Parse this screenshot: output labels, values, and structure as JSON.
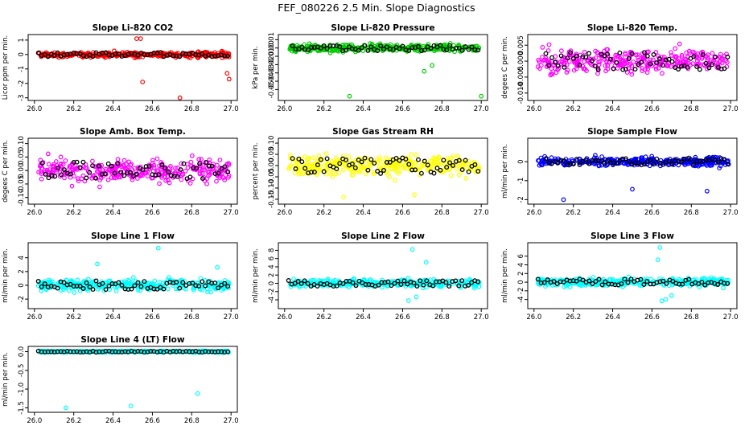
{
  "page": {
    "title": "FEF_080226  2.5 Min. Slope Diagnostics"
  },
  "chart_data": [
    {
      "type": "scatter",
      "title": "Slope Li-820 CO2",
      "ylabel": "Licor ppm per min.",
      "xlim": [
        26.0,
        27.0
      ],
      "ylim": [
        -3,
        1.2
      ],
      "xticks": [
        26.0,
        26.2,
        26.4,
        26.6,
        26.8,
        27.0
      ],
      "yticks": [
        -3,
        -2,
        -1,
        0,
        1
      ],
      "color": "#ff0000",
      "spread": 0.18,
      "marked_x": 26.02,
      "outliers": [
        [
          26.55,
          -1.9
        ],
        [
          26.74,
          -3.0
        ],
        [
          26.98,
          -1.3
        ],
        [
          26.99,
          -1.7
        ],
        [
          26.52,
          1.1
        ],
        [
          26.54,
          1.1
        ]
      ]
    },
    {
      "type": "scatter",
      "title": "Slope Li-820 Pressure",
      "ylabel": "kPa per min.",
      "xlim": [
        26.0,
        27.0
      ],
      "ylim": [
        -0.06,
        0.013
      ],
      "xticks": [
        26.0,
        26.2,
        26.4,
        26.6,
        26.8,
        27.0
      ],
      "yticks": [
        -0.05,
        -0.04,
        -0.03,
        -0.02,
        -0.01,
        0.0,
        0.01
      ],
      "color": "#00cc00",
      "spread": 0.004,
      "marked_x": 26.04,
      "outliers": [
        [
          26.33,
          -0.058
        ],
        [
          27.0,
          -0.058
        ],
        [
          26.71,
          -0.028
        ],
        [
          26.75,
          -0.021
        ]
      ]
    },
    {
      "type": "scatter",
      "title": "Slope Li-820 Temp.",
      "ylabel": "degees C per min.",
      "xlim": [
        26.0,
        27.0
      ],
      "ylim": [
        -0.0115,
        0.0075
      ],
      "xticks": [
        26.0,
        26.2,
        26.4,
        26.6,
        26.8,
        27.0
      ],
      "yticks": [
        -0.01,
        -0.005,
        0.0,
        0.005
      ],
      "color": "#ff00ff",
      "spread": 0.0035,
      "marked_x": 26.06,
      "outliers": []
    },
    {
      "type": "scatter",
      "title": "Slope Amb. Box Temp.",
      "ylabel": "degees C per min.",
      "xlim": [
        26.0,
        27.0
      ],
      "ylim": [
        -0.115,
        0.11
      ],
      "xticks": [
        26.0,
        26.2,
        26.4,
        26.6,
        26.8,
        27.0
      ],
      "yticks": [
        -0.1,
        -0.05,
        0.0,
        0.05,
        0.1
      ],
      "color": "#ff00ff",
      "spread": 0.04,
      "marked_x": 26.04,
      "outliers": []
    },
    {
      "type": "scatter",
      "title": "Slope Gas Stream RH",
      "ylabel": "percent per min.",
      "xlim": [
        26.0,
        27.0
      ],
      "ylim": [
        -0.16,
        0.11
      ],
      "xticks": [
        26.0,
        26.2,
        26.4,
        26.6,
        26.8,
        27.0
      ],
      "yticks": [
        -0.15,
        -0.1,
        -0.05,
        0.0,
        0.05,
        0.1
      ],
      "color": "#ffff00",
      "spread": 0.045,
      "marked_x": 26.04,
      "outliers": [
        [
          26.3,
          -0.14
        ],
        [
          26.66,
          -0.13
        ]
      ]
    },
    {
      "type": "scatter",
      "title": "Slope Sample Flow",
      "ylabel": "ml/min per min.",
      "xlim": [
        26.0,
        27.0
      ],
      "ylim": [
        -2.1,
        1.1
      ],
      "xticks": [
        26.0,
        26.2,
        26.4,
        26.6,
        26.8,
        27.0
      ],
      "yticks": [
        -2,
        -1,
        0
      ],
      "color": "#0000ff",
      "spread": 0.22,
      "marked_x": 26.06,
      "outliers": [
        [
          26.15,
          -2.0
        ],
        [
          26.5,
          -1.45
        ],
        [
          26.88,
          -1.55
        ]
      ]
    },
    {
      "type": "scatter",
      "title": "Slope Line 1 Flow",
      "ylabel": "ml/min per min.",
      "xlim": [
        26.0,
        27.0
      ],
      "ylim": [
        -3,
        5.8
      ],
      "xticks": [
        26.0,
        26.2,
        26.4,
        26.6,
        26.8,
        27.0
      ],
      "yticks": [
        -2,
        0,
        2,
        4
      ],
      "color": "#00ffff",
      "spread": 0.8,
      "marked_x": 26.02,
      "outliers": [
        [
          26.63,
          5.4
        ],
        [
          26.32,
          3.1
        ],
        [
          26.93,
          2.6
        ]
      ]
    },
    {
      "type": "scatter",
      "title": "Slope Line 2 Flow",
      "ylabel": "ml/min per min.",
      "xlim": [
        26.0,
        27.0
      ],
      "ylim": [
        -5.5,
        9.2
      ],
      "xticks": [
        26.0,
        26.2,
        26.4,
        26.6,
        26.8,
        27.0
      ],
      "yticks": [
        -4,
        -2,
        0,
        2,
        4,
        6,
        8
      ],
      "color": "#00ffff",
      "spread": 0.9,
      "marked_x": 26.02,
      "outliers": [
        [
          26.65,
          8.2
        ],
        [
          26.63,
          -4.2
        ],
        [
          26.67,
          -3.3
        ],
        [
          26.72,
          5.1
        ]
      ]
    },
    {
      "type": "scatter",
      "title": "Slope Line 3 Flow",
      "ylabel": "ml/min per min.",
      "xlim": [
        26.0,
        27.0
      ],
      "ylim": [
        -5.5,
        8.5
      ],
      "xticks": [
        26.0,
        26.2,
        26.4,
        26.6,
        26.8,
        27.0
      ],
      "yticks": [
        -4,
        -2,
        0,
        2,
        4,
        6
      ],
      "color": "#00ffff",
      "spread": 0.9,
      "marked_x": 26.02,
      "outliers": [
        [
          26.64,
          8.0
        ],
        [
          26.63,
          5.2
        ],
        [
          26.65,
          -4.3
        ],
        [
          26.67,
          -4.0
        ],
        [
          26.7,
          -3.1
        ]
      ]
    },
    {
      "type": "scatter",
      "title": "Slope Line 4 (LT) Flow",
      "ylabel": "ml/min per min.",
      "xlim": [
        26.0,
        27.0
      ],
      "ylim": [
        -1.55,
        0.07
      ],
      "xticks": [
        26.0,
        26.2,
        26.4,
        26.6,
        26.8,
        27.0
      ],
      "yticks": [
        -1.5,
        -1.0,
        -0.5,
        0.0
      ],
      "color": "#00ffff",
      "spread": 0.02,
      "marked_x": 26.02,
      "outliers": [
        [
          26.16,
          -1.5
        ],
        [
          26.49,
          -1.45
        ],
        [
          26.83,
          -1.12
        ]
      ]
    }
  ]
}
